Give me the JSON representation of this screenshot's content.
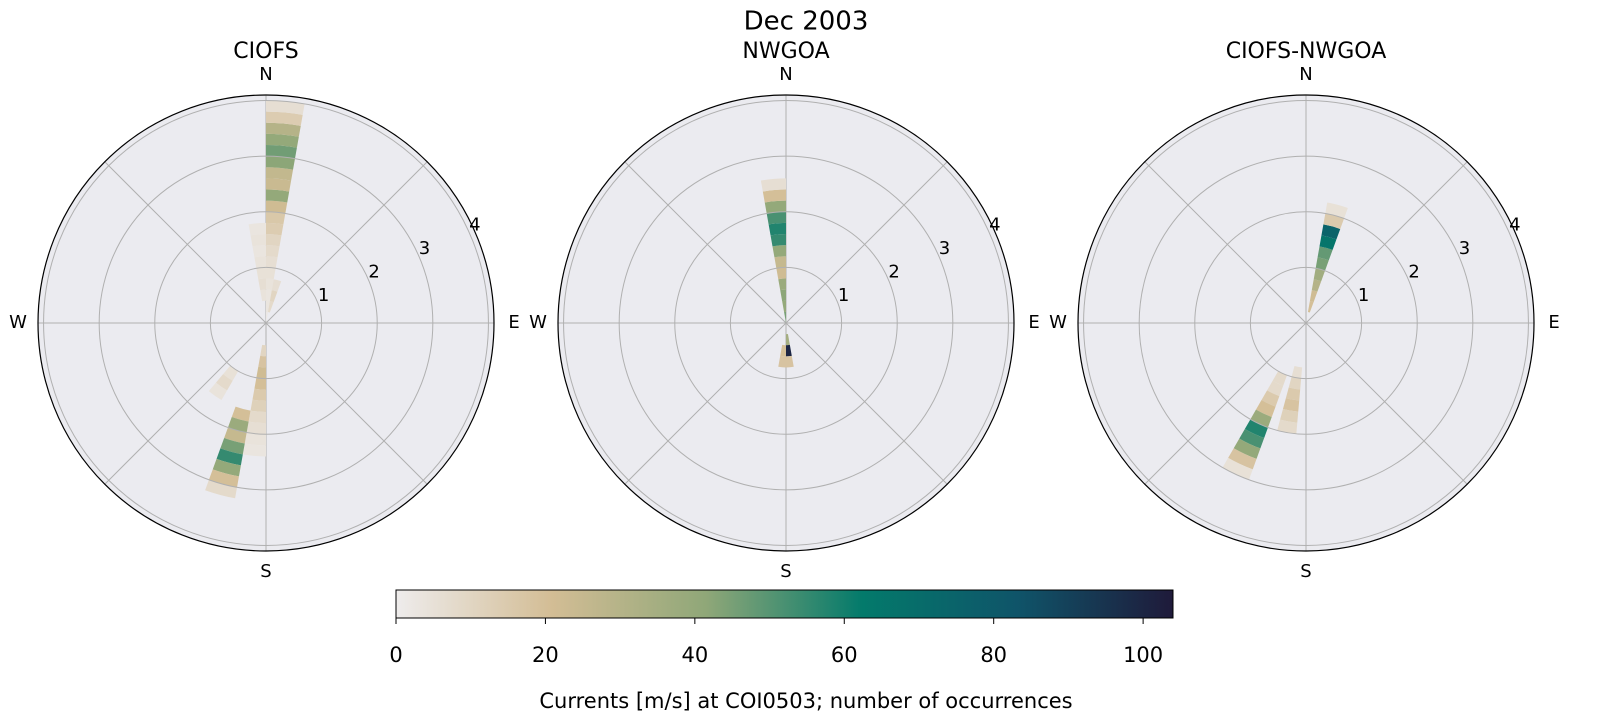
{
  "title": "Dec 2003",
  "chart_data": [
    {
      "type": "polar-histogram",
      "title": "CIOFS",
      "directions": [
        "N",
        "E",
        "S",
        "W"
      ],
      "rlim": [
        0,
        4.1
      ],
      "rticks": [
        1,
        2,
        3,
        4
      ],
      "bin_width": 10,
      "sectors": [
        {
          "direction": 5,
          "r_edges": [
            0,
            0.2,
            0.4,
            0.6,
            0.8,
            1.0,
            1.2,
            1.4,
            1.6,
            1.8,
            2.0,
            2.2,
            2.4,
            2.6,
            2.8,
            3.0,
            3.2,
            3.4,
            3.6,
            3.8,
            4.0
          ],
          "counts": [
            2,
            3,
            3,
            4,
            5,
            6,
            8,
            10,
            14,
            16,
            22,
            40,
            24,
            26,
            42,
            46,
            40,
            30,
            14,
            6
          ]
        },
        {
          "direction": 15,
          "r_edges": [
            0.2,
            0.4,
            0.6,
            0.8
          ],
          "counts": [
            8,
            10,
            6
          ]
        },
        {
          "direction": 355,
          "r_edges": [
            0.4,
            0.6,
            0.8,
            1.0,
            1.2,
            1.4,
            1.6,
            1.8
          ],
          "counts": [
            4,
            6,
            5,
            4,
            3,
            4,
            3
          ]
        },
        {
          "direction": 185,
          "r_edges": [
            0.4,
            0.6,
            0.8,
            1.0,
            1.2,
            1.4,
            1.6,
            1.8,
            2.0,
            2.2,
            2.4
          ],
          "counts": [
            10,
            18,
            22,
            20,
            15,
            12,
            8,
            6,
            4,
            3
          ]
        },
        {
          "direction": 195,
          "r_edges": [
            1.6,
            1.8,
            2.0,
            2.2,
            2.4,
            2.6,
            2.8,
            3.0,
            3.2
          ],
          "counts": [
            20,
            38,
            25,
            45,
            55,
            40,
            20,
            8
          ]
        },
        {
          "direction": 215,
          "r_edges": [
            1.0,
            1.2,
            1.4,
            1.6
          ],
          "counts": [
            5,
            8,
            4
          ]
        }
      ]
    },
    {
      "type": "polar-histogram",
      "title": "NWGOA",
      "directions": [
        "N",
        "E",
        "S",
        "W"
      ],
      "rlim": [
        0,
        4.1
      ],
      "rticks": [
        1,
        2,
        3,
        4
      ],
      "bin_width": 10,
      "sectors": [
        {
          "direction": 355,
          "r_edges": [
            0,
            0.2,
            0.4,
            0.6,
            0.8,
            1.0,
            1.2,
            1.4,
            1.6,
            1.8,
            2.0,
            2.2,
            2.4,
            2.6
          ],
          "counts": [
            45,
            40,
            42,
            38,
            22,
            25,
            40,
            55,
            58,
            52,
            40,
            20,
            6
          ]
        },
        {
          "direction": 175,
          "r_edges": [
            0.2,
            0.4,
            0.6,
            0.8
          ],
          "counts": [
            35,
            100,
            18
          ]
        },
        {
          "direction": 185,
          "r_edges": [
            0.4,
            0.6,
            0.8
          ],
          "counts": [
            20,
            18
          ]
        }
      ]
    },
    {
      "type": "polar-histogram",
      "title": "CIOFS-NWGOA",
      "directions": [
        "N",
        "E",
        "S",
        "W"
      ],
      "rlim": [
        0,
        4.1
      ],
      "rticks": [
        1,
        2,
        3,
        4
      ],
      "bin_width": 10,
      "sectors": [
        {
          "direction": 15,
          "r_edges": [
            0.2,
            0.4,
            0.6,
            0.8,
            1.0,
            1.2,
            1.4,
            1.6,
            1.8,
            2.0,
            2.2
          ],
          "counts": [
            20,
            22,
            30,
            36,
            45,
            48,
            65,
            75,
            15,
            5
          ]
        },
        {
          "direction": 205,
          "r_edges": [
            1.0,
            1.2,
            1.4,
            1.6,
            1.8,
            2.0,
            2.2,
            2.4,
            2.6,
            2.8,
            3.0
          ],
          "counts": [
            8,
            8,
            15,
            20,
            38,
            58,
            52,
            40,
            18,
            5
          ]
        },
        {
          "direction": 190,
          "r_edges": [
            0.8,
            1.0,
            1.2,
            1.4,
            1.6,
            1.8,
            2.0
          ],
          "counts": [
            6,
            10,
            15,
            18,
            12,
            8
          ]
        }
      ]
    }
  ],
  "colorbar": {
    "label": "Currents [m/s] at COI0503; number of occurrences",
    "clim": [
      0,
      104
    ],
    "ticks": [
      0,
      20,
      40,
      60,
      80,
      100
    ],
    "colormap": [
      "#eeecec",
      "#d3bd95",
      "#8fa778",
      "#037a6b",
      "#0f5469",
      "#1f1a3a"
    ]
  }
}
